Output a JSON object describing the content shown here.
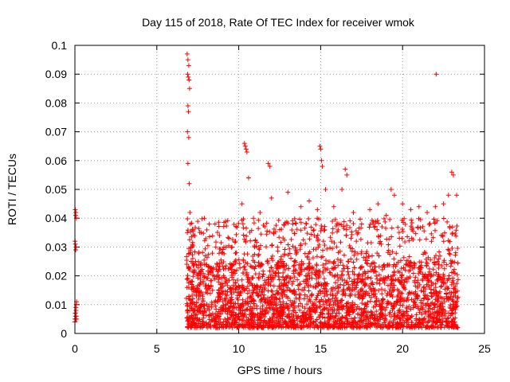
{
  "chart_data": {
    "type": "scatter",
    "title": "Day 115 of 2018, Rate Of TEC Index for receiver wmok",
    "xlabel": "GPS time / hours",
    "ylabel": "ROTI / TECUs",
    "xlim": [
      0,
      25
    ],
    "ylim": [
      0,
      0.1
    ],
    "x_ticks": [
      0,
      5,
      10,
      15,
      20,
      25
    ],
    "y_ticks": [
      0,
      0.01,
      0.02,
      0.03,
      0.04,
      0.05,
      0.06,
      0.07,
      0.08,
      0.09,
      0.1
    ],
    "x_tick_labels": [
      "0",
      "5",
      "10",
      "15",
      "20",
      "25"
    ],
    "y_tick_labels": [
      "0",
      "0.01",
      "0.02",
      "0.03",
      "0.04",
      "0.05",
      "0.06",
      "0.07",
      "0.08",
      "0.09",
      "0.1"
    ],
    "grid": true,
    "marker": "+",
    "color": "#ff0000",
    "series": [
      {
        "x": [
          0.0,
          0.02,
          0.04,
          0.06,
          0.08,
          0.1,
          0.05,
          0.03,
          0.07,
          0.01,
          0.09,
          0.04,
          0.06,
          0.02,
          0.08,
          0.05,
          0.03,
          0.07,
          0.1,
          0.0,
          6.85,
          6.9,
          6.95,
          6.88,
          6.92,
          6.97,
          7.0,
          6.9,
          6.93,
          6.87,
          6.95,
          6.9,
          6.98,
          7.02,
          6.86,
          7.05,
          7.1,
          7.15,
          7.3,
          7.5,
          7.7,
          7.9,
          8.2,
          8.6,
          9.0,
          9.4,
          9.8,
          10.2,
          10.35,
          10.4,
          10.45,
          10.5,
          10.6,
          10.9,
          11.3,
          11.8,
          11.9,
          12.0,
          12.5,
          13.0,
          13.3,
          13.8,
          14.3,
          14.8,
          14.95,
          15.0,
          15.05,
          15.1,
          15.3,
          15.8,
          16.3,
          16.5,
          16.6,
          17.0,
          17.5,
          18.0,
          18.5,
          19.0,
          19.3,
          19.5,
          20.0,
          20.5,
          21.0,
          21.5,
          22.0,
          22.5,
          22.8,
          23.0,
          23.1,
          23.3,
          22.05,
          7.2,
          7.6,
          8.4,
          9.2,
          10.0,
          10.8,
          11.6,
          12.4,
          13.2,
          14.0,
          14.6,
          15.6,
          16.8,
          17.8,
          18.8,
          19.8,
          20.8,
          21.8,
          22.7,
          23.2
        ],
        "y": [
          0.005,
          0.007,
          0.006,
          0.009,
          0.01,
          0.011,
          0.029,
          0.031,
          0.03,
          0.032,
          0.04,
          0.041,
          0.042,
          0.043,
          0.006,
          0.005,
          0.007,
          0.008,
          0.005,
          0.004,
          0.097,
          0.095,
          0.093,
          0.09,
          0.089,
          0.088,
          0.085,
          0.079,
          0.077,
          0.07,
          0.068,
          0.059,
          0.052,
          0.042,
          0.035,
          0.028,
          0.025,
          0.03,
          0.022,
          0.02,
          0.035,
          0.04,
          0.038,
          0.03,
          0.028,
          0.033,
          0.032,
          0.045,
          0.066,
          0.065,
          0.064,
          0.063,
          0.054,
          0.04,
          0.042,
          0.059,
          0.058,
          0.047,
          0.036,
          0.049,
          0.038,
          0.044,
          0.046,
          0.043,
          0.065,
          0.064,
          0.06,
          0.058,
          0.05,
          0.044,
          0.05,
          0.057,
          0.055,
          0.042,
          0.038,
          0.043,
          0.045,
          0.041,
          0.05,
          0.048,
          0.045,
          0.043,
          0.044,
          0.042,
          0.044,
          0.045,
          0.048,
          0.056,
          0.055,
          0.048,
          0.09,
          0.012,
          0.008,
          0.015,
          0.01,
          0.009,
          0.013,
          0.011,
          0.014,
          0.01,
          0.012,
          0.009,
          0.011,
          0.013,
          0.01,
          0.012,
          0.011,
          0.01,
          0.013,
          0.012,
          0.009
        ]
      }
    ],
    "dense_bands": [
      {
        "x_start": 6.8,
        "x_end": 23.4,
        "y_min": 0.002,
        "y_max": 0.025
      }
    ]
  }
}
